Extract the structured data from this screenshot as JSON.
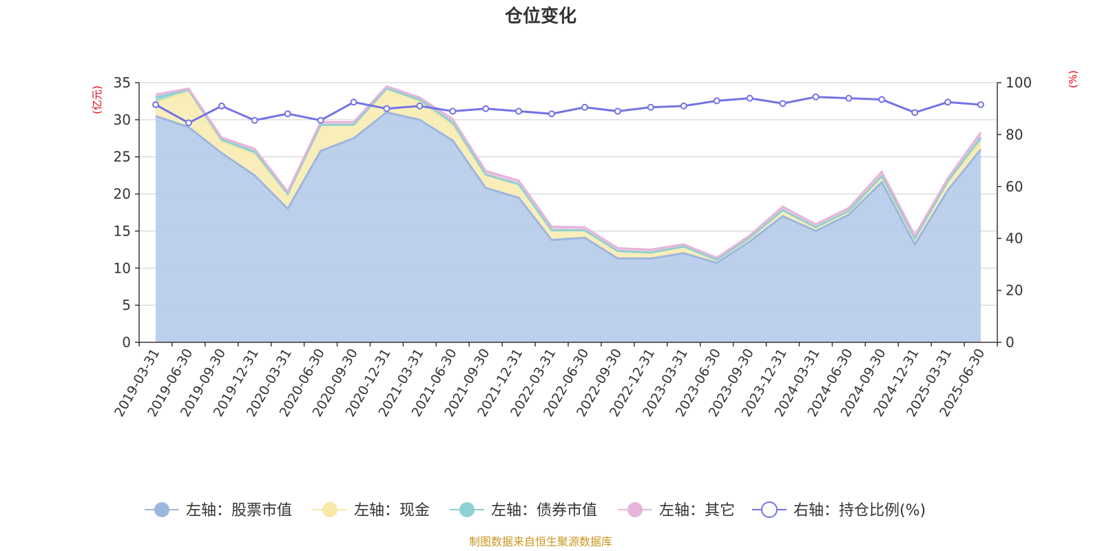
{
  "chart_data": {
    "type": "area",
    "title": "仓位变化",
    "left_axis_unit": "(亿元)",
    "right_axis_unit": "(%)",
    "ylim_left": [
      0,
      35
    ],
    "yticks_left": [
      "0",
      "5",
      "10",
      "15",
      "20",
      "25",
      "30",
      "35"
    ],
    "ylim_right": [
      0,
      100
    ],
    "yticks_right": [
      "0",
      "20",
      "40",
      "60",
      "80",
      "100"
    ],
    "stacked": true,
    "grid": true,
    "legend_position": "bottom",
    "categories": [
      "2019-03-31",
      "2019-06-30",
      "2019-09-30",
      "2019-12-31",
      "2020-03-31",
      "2020-06-30",
      "2020-09-30",
      "2020-12-31",
      "2021-03-31",
      "2021-06-30",
      "2021-09-30",
      "2021-12-31",
      "2022-03-31",
      "2022-06-30",
      "2022-09-30",
      "2022-12-31",
      "2023-03-31",
      "2023-06-30",
      "2023-09-30",
      "2023-12-31",
      "2024-03-31",
      "2024-06-30",
      "2024-09-30",
      "2024-12-31",
      "2025-03-31",
      "2025-06-30"
    ],
    "series": [
      {
        "name": "左轴：股票市值",
        "axis": "left",
        "kind": "area",
        "color": "#9db6e0",
        "fill": "#b8cdeb",
        "values": [
          30.5,
          29.0,
          25.5,
          22.5,
          18.0,
          25.8,
          27.5,
          31.0,
          30.0,
          27.2,
          20.8,
          19.5,
          13.8,
          14.1,
          11.3,
          11.3,
          12.0,
          10.7,
          13.6,
          17.0,
          15.0,
          17.2,
          21.6,
          13.2,
          20.5,
          26.0
        ]
      },
      {
        "name": "左轴：现金",
        "axis": "left",
        "kind": "area",
        "color": "#f7e8a6",
        "fill": "#f9edb6",
        "values": [
          1.8,
          4.8,
          1.5,
          2.8,
          2.0,
          3.5,
          1.8,
          3.2,
          2.5,
          2.0,
          1.8,
          1.8,
          1.3,
          1.0,
          1.0,
          0.8,
          0.9,
          0.4,
          0.5,
          0.8,
          0.5,
          0.5,
          0.8,
          0.8,
          1.2,
          1.0
        ]
      },
      {
        "name": "左轴：债券市值",
        "axis": "left",
        "kind": "area",
        "color": "#8fd1d1",
        "fill": "#9ed8d8",
        "values": [
          0.7,
          0.2,
          0.3,
          0.4,
          0.0,
          0.0,
          0.0,
          0.0,
          0.2,
          0.4,
          0.0,
          0.0,
          0.0,
          0.0,
          0.0,
          0.0,
          0.0,
          0.0,
          0.0,
          0.0,
          0.0,
          0.0,
          0.0,
          0.0,
          0.0,
          0.6
        ]
      },
      {
        "name": "左轴：其它",
        "axis": "left",
        "kind": "area",
        "color": "#e7b4da",
        "fill": "#edc4e3",
        "values": [
          0.4,
          0.2,
          0.3,
          0.4,
          0.3,
          0.4,
          0.4,
          0.3,
          0.3,
          0.5,
          0.5,
          0.5,
          0.5,
          0.4,
          0.4,
          0.4,
          0.3,
          0.3,
          0.3,
          0.5,
          0.4,
          0.4,
          0.6,
          0.4,
          0.4,
          0.7
        ]
      },
      {
        "name": "右轴：持仓比例(%)",
        "axis": "right",
        "kind": "line",
        "color": "#7272e6",
        "values": [
          91.5,
          84.5,
          91.0,
          85.5,
          88.0,
          85.5,
          92.5,
          90.0,
          91.0,
          89.0,
          90.0,
          89.0,
          88.0,
          90.5,
          89.0,
          90.5,
          91.0,
          93.0,
          94.0,
          92.0,
          94.5,
          94.0,
          93.5,
          88.5,
          92.5,
          91.5
        ]
      }
    ]
  },
  "source_note": "制图数据来自恒生聚源数据库"
}
